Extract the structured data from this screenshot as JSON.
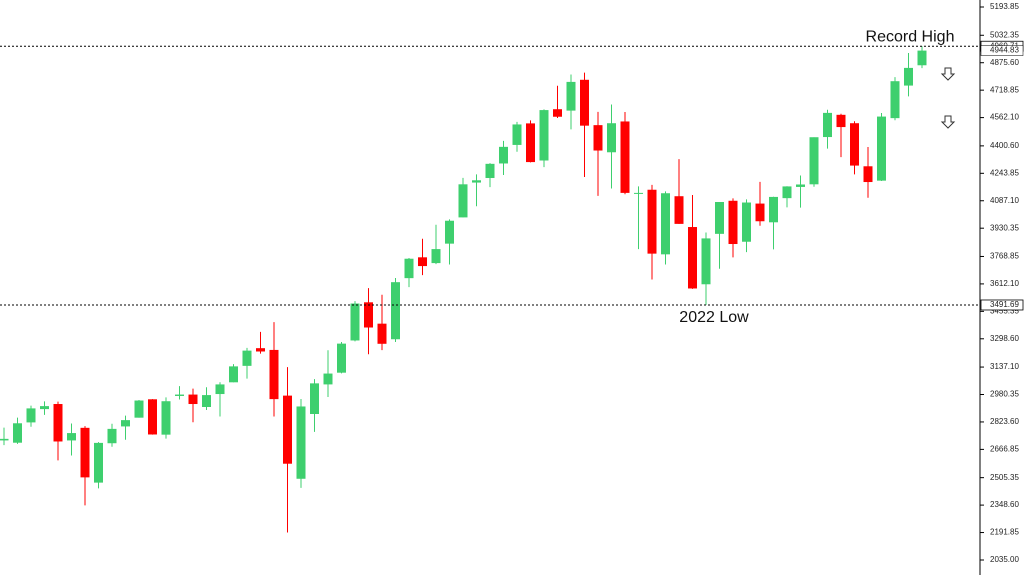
{
  "chart_data": {
    "type": "candlestick",
    "up_color": "#3ecf6e",
    "down_color": "#ff0000",
    "open": [
      2718,
      2705,
      2821,
      2897,
      2926,
      2718,
      2790,
      2477,
      2702,
      2798,
      2848,
      2953,
      2751,
      2972,
      2980,
      2909,
      2983,
      3050,
      3144,
      3245,
      3235,
      2974,
      2499,
      2869,
      3038,
      3105,
      3289,
      3507,
      3385,
      3296,
      3645,
      3764,
      3731,
      3842,
      3992,
      4191,
      4217,
      4300,
      4406,
      4529,
      4317,
      4610,
      4602,
      4778,
      4519,
      4364,
      4540,
      4130,
      4150,
      3781,
      4113,
      3937,
      3610,
      3898,
      4087,
      3853,
      4071,
      3964,
      4102,
      4166,
      4181,
      4451,
      4578,
      4530,
      4284,
      4202,
      4559,
      4745,
      4861
    ],
    "high": [
      2791,
      2848,
      2917,
      2941,
      2940,
      2815,
      2800,
      2708,
      2813,
      2860,
      2949,
      2954,
      2964,
      3028,
      3014,
      3022,
      3050,
      3154,
      3247,
      3338,
      3394,
      3137,
      2955,
      3068,
      3233,
      3280,
      3514,
      3588,
      3550,
      3646,
      3760,
      3870,
      3950,
      3981,
      4218,
      4238,
      4302,
      4429,
      4538,
      4546,
      4609,
      4744,
      4808,
      4819,
      4595,
      4637,
      4594,
      4169,
      4178,
      4141,
      4325,
      4120,
      3906,
      4080,
      4101,
      4095,
      4195,
      4110,
      4170,
      4231,
      4449,
      4607,
      4584,
      4541,
      4394,
      4588,
      4793,
      4931,
      4969.71
    ],
    "low": [
      2691,
      2698,
      2796,
      2864,
      2604,
      2632,
      2347,
      2444,
      2682,
      2722,
      2848,
      2751,
      2728,
      2952,
      2822,
      2892,
      2855,
      3050,
      3071,
      3214,
      2855,
      2192,
      2447,
      2767,
      2966,
      3101,
      3284,
      3210,
      3234,
      3280,
      3594,
      3662,
      3725,
      3723,
      3992,
      4056,
      4165,
      4234,
      4367,
      4306,
      4279,
      4560,
      4495,
      4223,
      4115,
      4157,
      4124,
      3811,
      3637,
      3723,
      3955,
      3584,
      3491.69,
      3699,
      3764,
      3794,
      3944,
      3809,
      4049,
      4048,
      4167,
      4385,
      4336,
      4238,
      4104,
      4200,
      4547,
      4683,
      4845
    ],
    "close": [
      2727,
      2816,
      2901,
      2914,
      2712,
      2760,
      2507,
      2704,
      2784,
      2834,
      2946,
      2752,
      2942,
      2980,
      2926,
      2977,
      3038,
      3141,
      3231,
      3226,
      2954,
      2585,
      2912,
      3044,
      3100,
      3271,
      3500,
      3363,
      3270,
      3622,
      3756,
      3714,
      3811,
      3973,
      4181,
      4204,
      4298,
      4395,
      4523,
      4308,
      4605,
      4567,
      4766,
      4516,
      4374,
      4530,
      4132,
      4132,
      3785,
      4130,
      3955,
      3586,
      3872,
      4080,
      3840,
      4077,
      3970,
      4109,
      4169,
      4180,
      4450,
      4589,
      4508,
      4288,
      4194,
      4568,
      4770,
      4846,
      4944.83
    ],
    "ylim": [
      2035,
      5193.85
    ],
    "yticks": [
      {
        "value": 2035,
        "label": "2035.00"
      },
      2191.85,
      {
        "value": 2348.6,
        "label": "2348.60"
      },
      2505.35,
      2666.85,
      {
        "value": 2823.6,
        "label": "2823.60"
      },
      2980.35,
      {
        "value": 3137.1,
        "label": "3137.10"
      },
      {
        "value": 3298.6,
        "label": "3298.60"
      },
      3455.35,
      {
        "value": 3612.1,
        "label": "3612.10"
      },
      3768.85,
      3930.35,
      {
        "value": 4087.1,
        "label": "4087.10"
      },
      4243.85,
      {
        "value": 4400.6,
        "label": "4400.60"
      },
      {
        "value": 4562.1,
        "label": "4562.10"
      },
      4718.85,
      {
        "value": 4875.6,
        "label": "4875.60"
      },
      5032.35,
      5193.85
    ],
    "last_price": 4944.83,
    "reference_lines": [
      {
        "value": 4969.71,
        "label": "Record High"
      },
      {
        "value": 3491.69,
        "label": "2022 Low"
      }
    ]
  }
}
